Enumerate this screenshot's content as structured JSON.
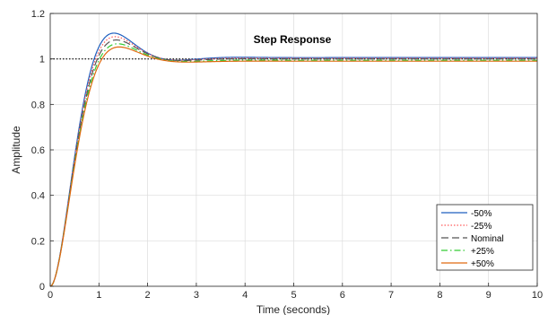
{
  "chart_data": {
    "type": "line",
    "title": "Step Response",
    "xlabel": "Time (seconds)",
    "ylabel": "Amplitude",
    "xlim": [
      0,
      10
    ],
    "ylim": [
      0,
      1.2
    ],
    "xticks": [
      0,
      1,
      2,
      3,
      4,
      5,
      6,
      7,
      8,
      9,
      10
    ],
    "yticks": [
      0,
      0.2,
      0.4,
      0.6,
      0.8,
      1,
      1.2
    ],
    "grid": true,
    "legend_position": "bottom-right",
    "reference_line": {
      "y": 1,
      "style": "dotted",
      "color": "#000000"
    },
    "series": [
      {
        "name": "-50%",
        "color": "#1f5fbf",
        "dash": "solid",
        "zeta": 0.58,
        "wn": 2.95,
        "final": 1.006
      },
      {
        "name": "-25%",
        "color": "#ff5a5a",
        "dash": "dotted",
        "zeta": 0.6,
        "wn": 2.95,
        "final": 1.003
      },
      {
        "name": "Nominal",
        "color": "#555555",
        "dash": "dashed",
        "zeta": 0.62,
        "wn": 2.95,
        "final": 1.0
      },
      {
        "name": "+25%",
        "color": "#33cc33",
        "dash": "dashdot",
        "zeta": 0.64,
        "wn": 2.95,
        "final": 0.994
      },
      {
        "name": "+50%",
        "color": "#e06a10",
        "dash": "solid",
        "zeta": 0.66,
        "wn": 2.95,
        "final": 0.99
      }
    ]
  }
}
